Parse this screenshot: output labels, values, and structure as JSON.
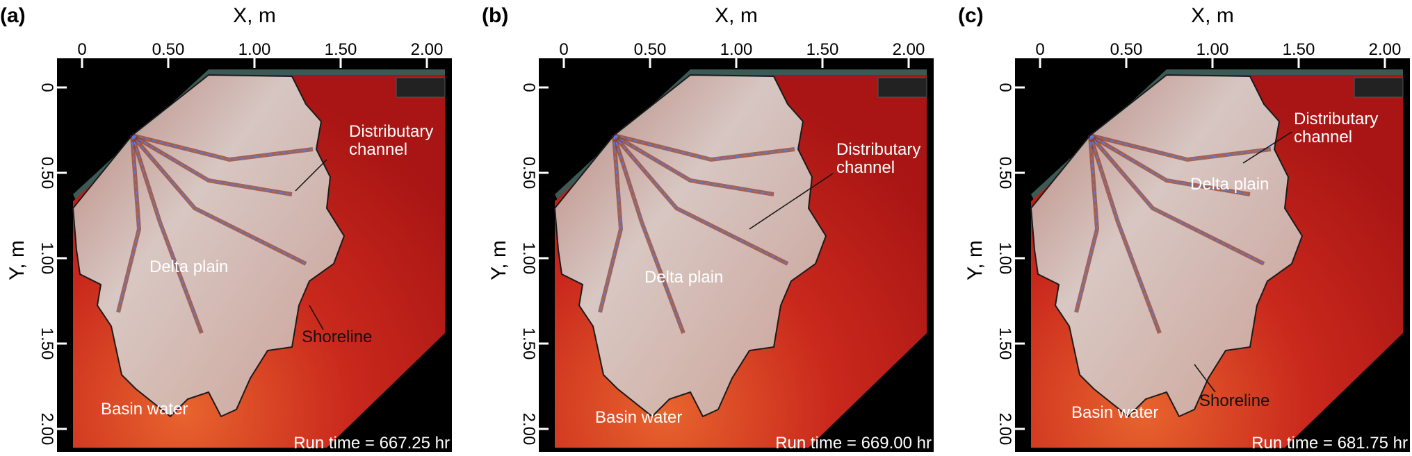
{
  "panels": [
    {
      "label": "(a)",
      "x_axis_label": "X, m",
      "y_axis_label": "Y, m",
      "xticks": [
        "0",
        "0.50",
        "1.00",
        "1.50",
        "2.00"
      ],
      "yticks": [
        "0",
        "0.50",
        "1.00",
        "1.50",
        "2.00"
      ],
      "annotations": {
        "distributary_channel": [
          "Distributary",
          "channel"
        ],
        "delta_plain": "Delta plain",
        "shoreline": "Shoreline",
        "basin_water": "Basin water"
      },
      "run_time": "Run time = 667.25 hr"
    },
    {
      "label": "(b)",
      "x_axis_label": "X, m",
      "y_axis_label": "Y, m",
      "xticks": [
        "0",
        "0.50",
        "1.00",
        "1.50",
        "2.00"
      ],
      "yticks": [
        "0",
        "0.50",
        "1.00",
        "1.50",
        "2.00"
      ],
      "annotations": {
        "distributary_channel": [
          "Distributary",
          "channel"
        ],
        "delta_plain": "Delta plain",
        "basin_water": "Basin water"
      },
      "run_time": "Run time = 669.00 hr"
    },
    {
      "label": "(c)",
      "x_axis_label": "X, m",
      "y_axis_label": "Y, m",
      "xticks": [
        "0",
        "0.50",
        "1.00",
        "1.50",
        "2.00"
      ],
      "yticks": [
        "0",
        "0.50",
        "1.00",
        "1.50",
        "2.00"
      ],
      "annotations": {
        "distributary_channel": [
          "Distributary",
          "channel"
        ],
        "delta_plain": "Delta plain",
        "shoreline": "Shoreline",
        "basin_water": "Basin water"
      },
      "run_time": "Run time = 681.75 hr"
    }
  ]
}
